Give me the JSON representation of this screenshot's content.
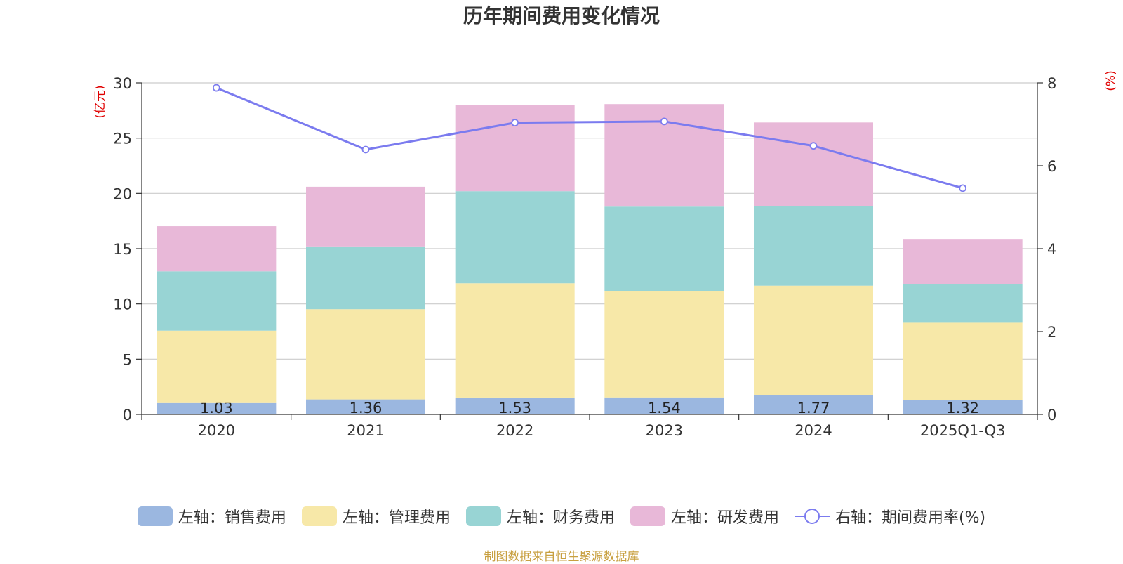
{
  "chart_data": {
    "type": "bar",
    "title": "历年期间费用变化情况",
    "categories": [
      "2020",
      "2021",
      "2022",
      "2023",
      "2024",
      "2025Q1-Q3"
    ],
    "left_axis": {
      "label": "(亿元)",
      "range": [
        0,
        30
      ],
      "ticks": [
        "0",
        "5",
        "10",
        "15",
        "20",
        "25",
        "30"
      ]
    },
    "right_axis": {
      "label": "(%)",
      "range": [
        0,
        8
      ],
      "ticks": [
        "0",
        "2",
        "4",
        "6",
        "8"
      ]
    },
    "series": [
      {
        "name": "左轴：销售费用",
        "type": "bar",
        "axis": "left",
        "color": "#9bb7e0",
        "values": [
          1.03,
          1.36,
          1.53,
          1.54,
          1.77,
          1.32
        ],
        "labels": [
          "1.03",
          "1.36",
          "1.53",
          "1.54",
          "1.77",
          "1.32"
        ]
      },
      {
        "name": "左轴：管理费用",
        "type": "bar",
        "axis": "left",
        "color": "#f7e8a8",
        "values": [
          6.55,
          8.16,
          10.34,
          9.59,
          9.88,
          6.98
        ]
      },
      {
        "name": "左轴：财务费用",
        "type": "bar",
        "axis": "left",
        "color": "#98d4d4",
        "values": [
          5.37,
          5.68,
          8.33,
          7.67,
          7.17,
          3.52
        ]
      },
      {
        "name": "左轴：研发费用",
        "type": "bar",
        "axis": "left",
        "color": "#e8b8d8",
        "values": [
          4.08,
          5.4,
          7.82,
          9.28,
          7.6,
          4.06
        ]
      },
      {
        "name": "右轴：期间费用率(%)",
        "type": "line",
        "axis": "right",
        "color": "#7b7bef",
        "values": [
          7.88,
          6.39,
          7.04,
          7.07,
          6.48,
          5.46
        ]
      }
    ],
    "legend_position": "bottom",
    "grid": true
  },
  "source_text": "制图数据来自恒生聚源数据库"
}
